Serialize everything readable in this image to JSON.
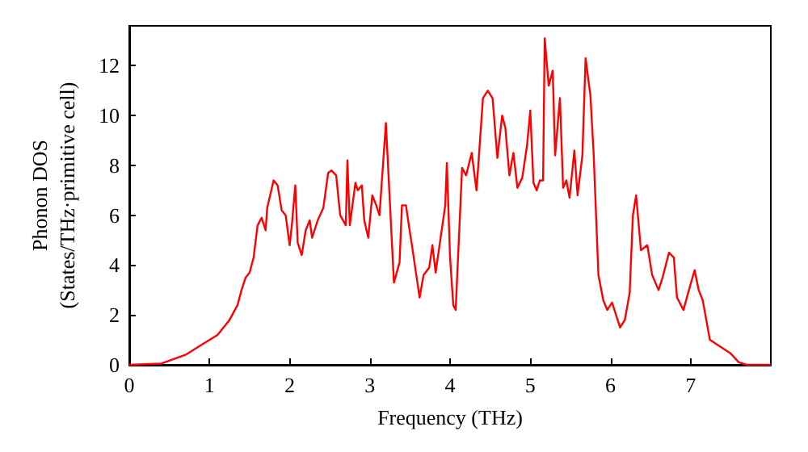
{
  "chart_data": {
    "type": "line",
    "xlabel": "Frequency (THz)",
    "ylabel": "Phonon DOS\n(States/THz·primitive cell)",
    "xlim": [
      0,
      8
    ],
    "ylim": [
      0,
      13.6
    ],
    "xticks": [
      0,
      1,
      2,
      3,
      4,
      5,
      6,
      7
    ],
    "yticks": [
      0,
      2,
      4,
      6,
      8,
      10,
      12
    ],
    "marker": "none",
    "line_style": "solid",
    "series": [
      {
        "color": "#ff0000",
        "x": [
          0,
          0.4,
          0.7,
          0.9,
          1.1,
          1.25,
          1.35,
          1.4,
          1.45,
          1.5,
          1.55,
          1.6,
          1.65,
          1.7,
          1.72,
          1.8,
          1.85,
          1.9,
          1.95,
          2.0,
          2.03,
          2.07,
          2.1,
          2.15,
          2.2,
          2.25,
          2.28,
          2.35,
          2.42,
          2.48,
          2.52,
          2.58,
          2.63,
          2.7,
          2.72,
          2.75,
          2.82,
          2.85,
          2.9,
          2.93,
          2.98,
          3.03,
          3.08,
          3.12,
          3.2,
          3.3,
          3.37,
          3.4,
          3.45,
          3.5,
          3.52,
          3.62,
          3.67,
          3.74,
          3.78,
          3.82,
          3.94,
          3.96,
          4.0,
          4.04,
          4.07,
          4.15,
          4.2,
          4.27,
          4.33,
          4.41,
          4.47,
          4.53,
          4.59,
          4.65,
          4.69,
          4.74,
          4.79,
          4.84,
          4.9,
          4.96,
          5.0,
          5.04,
          5.08,
          5.12,
          5.16,
          5.18,
          5.23,
          5.28,
          5.31,
          5.37,
          5.41,
          5.45,
          5.49,
          5.55,
          5.59,
          5.65,
          5.69,
          5.75,
          5.79,
          5.85,
          5.91,
          5.96,
          6.02,
          6.08,
          6.12,
          6.18,
          6.24,
          6.28,
          6.32,
          6.38,
          6.46,
          6.52,
          6.6,
          6.65,
          6.73,
          6.79,
          6.83,
          6.91,
          6.97,
          7.05,
          7.1,
          7.15,
          7.24,
          7.5,
          7.6,
          7.7,
          8.0
        ],
        "values": [
          0,
          0.05,
          0.4,
          0.8,
          1.2,
          1.8,
          2.4,
          3.0,
          3.5,
          3.7,
          4.3,
          5.6,
          5.9,
          5.4,
          6.3,
          7.4,
          7.2,
          6.2,
          6.0,
          4.8,
          5.7,
          7.2,
          4.9,
          4.4,
          5.4,
          5.8,
          5.1,
          5.8,
          6.3,
          7.7,
          7.8,
          7.6,
          6.0,
          5.6,
          8.2,
          5.6,
          7.3,
          7.0,
          7.2,
          5.8,
          5.1,
          6.8,
          6.4,
          6.0,
          9.7,
          3.3,
          4.1,
          6.4,
          6.4,
          5.3,
          4.9,
          2.7,
          3.6,
          3.9,
          4.8,
          3.7,
          6.4,
          8.1,
          4.3,
          2.4,
          2.2,
          7.9,
          7.6,
          8.5,
          7.0,
          10.7,
          11.0,
          10.7,
          8.3,
          10.0,
          9.5,
          7.6,
          8.5,
          7.1,
          7.5,
          8.8,
          10.2,
          7.3,
          7.0,
          7.4,
          7.4,
          13.1,
          11.2,
          11.8,
          8.4,
          10.7,
          7.1,
          7.4,
          6.7,
          8.6,
          6.8,
          8.4,
          12.3,
          10.8,
          8.5,
          3.6,
          2.6,
          2.2,
          2.5,
          1.9,
          1.5,
          1.8,
          2.9,
          6.0,
          6.8,
          4.6,
          4.8,
          3.6,
          3.0,
          3.5,
          4.5,
          4.3,
          2.7,
          2.2,
          2.9,
          3.8,
          3.0,
          2.6,
          1.0,
          0.45,
          0.1,
          0,
          0
        ]
      }
    ]
  }
}
